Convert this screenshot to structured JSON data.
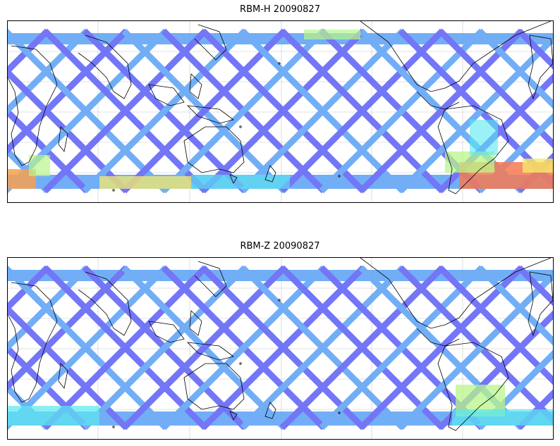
{
  "panels": [
    {
      "id": "top",
      "title": "RBM-H 20090827"
    },
    {
      "id": "bottom",
      "title": "RBM-Z 20090827"
    }
  ],
  "map": {
    "projection": "plate carree, centered ~150E",
    "latitude_coverage": "about 70N to 55S",
    "colormap": "jet (alpha blended)",
    "colors": {
      "low": "#5b5ff5",
      "low_mid": "#5aa0f5",
      "mid": "#5ae8f0",
      "mid_high": "#b8f58a",
      "high_yellow": "#f6e96a",
      "high_orange": "#f7a050",
      "max": "#f57a55",
      "coastline": "#000000",
      "gridline": "#c8c8c8"
    },
    "swath_pattern": "diagonal crossing satellite ground tracks",
    "hotspots_top": [
      "south-atlantic region (orange/red)",
      "southern indian ocean (yellow/orange)"
    ],
    "hotspots_bottom": [
      "south-atlantic region (green/cyan)"
    ]
  }
}
